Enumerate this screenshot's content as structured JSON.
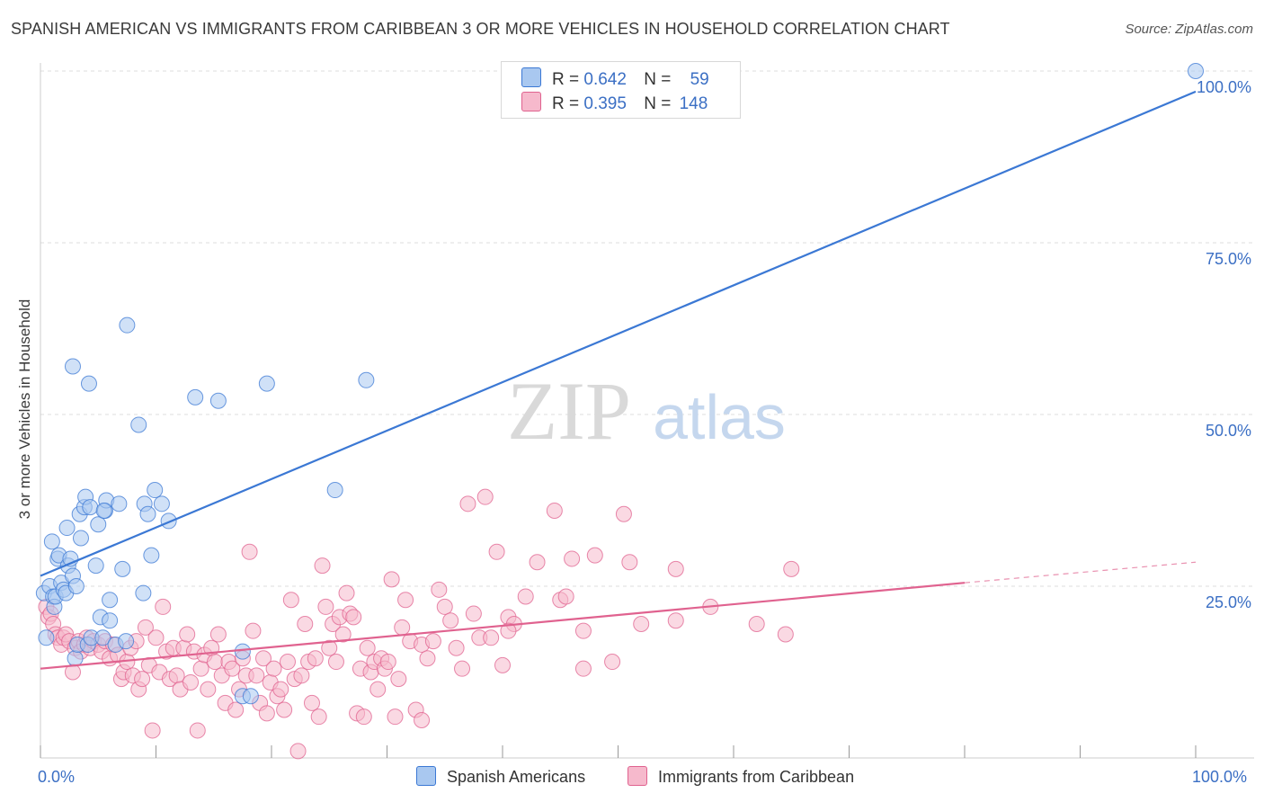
{
  "title": "SPANISH AMERICAN VS IMMIGRANTS FROM CARIBBEAN 3 OR MORE VEHICLES IN HOUSEHOLD CORRELATION CHART",
  "source": "Source: ZipAtlas.com",
  "watermark": {
    "zip": "ZIP",
    "atlas": "atlas"
  },
  "colors": {
    "blue": "#3b78d4",
    "blue_fill": "#a9c8f0",
    "pink": "#e0628f",
    "pink_fill": "#f6b9cc",
    "tick_text": "#3b6fc4",
    "grid": "#dddddd"
  },
  "legend": {
    "rows": [
      {
        "r_label": "R =",
        "r_value": "0.642",
        "n_label": "N =",
        "n_value": "59",
        "color": "#a9c8f0"
      },
      {
        "r_label": "R =",
        "r_value": "0.395",
        "n_label": "N =",
        "n_value": "148",
        "color": "#f6b9cc"
      }
    ]
  },
  "bottom_legend": [
    {
      "label": "Spanish Americans",
      "color": "#a9c8f0"
    },
    {
      "label": "Immigrants from Caribbean",
      "color": "#f6b9cc"
    }
  ],
  "chart_data": {
    "type": "scatter",
    "title": "SPANISH AMERICAN VS IMMIGRANTS FROM CARIBBEAN 3 OR MORE VEHICLES IN HOUSEHOLD CORRELATION CHART",
    "xlabel": "",
    "ylabel": "3 or more Vehicles in Household",
    "xlim": [
      0,
      100
    ],
    "ylim": [
      0,
      100
    ],
    "x_tick_labels": [
      "0.0%",
      "100.0%"
    ],
    "y_tick_labels": [
      "100.0%",
      "75.0%",
      "50.0%",
      "25.0%"
    ],
    "y_tick_values": [
      100,
      75,
      50,
      25
    ],
    "grid": true,
    "series": [
      {
        "name": "Spanish Americans",
        "color": "#3b78d4",
        "fill": "#a9c8f0",
        "trend": {
          "x0": 0,
          "y0": 26.5,
          "x1": 100,
          "y1": 97
        },
        "points": [
          [
            0.3,
            24
          ],
          [
            0.5,
            17.5
          ],
          [
            0.8,
            25
          ],
          [
            1,
            31.5
          ],
          [
            1.1,
            23.5
          ],
          [
            1.2,
            22
          ],
          [
            1.3,
            23.5
          ],
          [
            1.5,
            29
          ],
          [
            1.6,
            29.5
          ],
          [
            1.8,
            25.5
          ],
          [
            2,
            24.5
          ],
          [
            2.2,
            24
          ],
          [
            2.3,
            33.5
          ],
          [
            2.4,
            28
          ],
          [
            2.6,
            29
          ],
          [
            2.8,
            26.5
          ],
          [
            3,
            14.5
          ],
          [
            3.1,
            25
          ],
          [
            3.2,
            16.5
          ],
          [
            3.4,
            35.5
          ],
          [
            3.5,
            32
          ],
          [
            3.8,
            36.5
          ],
          [
            3.9,
            38
          ],
          [
            4.1,
            16.5
          ],
          [
            4.3,
            36.5
          ],
          [
            4.2,
            54.5
          ],
          [
            2.8,
            57
          ],
          [
            4.4,
            17.5
          ],
          [
            4.8,
            28
          ],
          [
            5,
            34
          ],
          [
            5.2,
            20.5
          ],
          [
            5.4,
            17.5
          ],
          [
            5.6,
            36
          ],
          [
            5.7,
            37.5
          ],
          [
            6,
            20
          ],
          [
            6,
            23
          ],
          [
            6.5,
            16.5
          ],
          [
            6.8,
            37
          ],
          [
            7.1,
            27.5
          ],
          [
            7.4,
            17
          ],
          [
            7.5,
            63
          ],
          [
            8.5,
            48.5
          ],
          [
            8.9,
            24
          ],
          [
            9,
            37
          ],
          [
            9.3,
            35.5
          ],
          [
            9.6,
            29.5
          ],
          [
            9.9,
            39
          ],
          [
            10.5,
            37
          ],
          [
            11.1,
            34.5
          ],
          [
            13.4,
            52.5
          ],
          [
            15.4,
            52
          ],
          [
            17.5,
            9
          ],
          [
            17.5,
            15.5
          ],
          [
            18.2,
            9
          ],
          [
            19.6,
            54.5
          ],
          [
            25.5,
            39
          ],
          [
            28.2,
            55
          ],
          [
            100,
            100
          ],
          [
            5.5,
            36
          ]
        ]
      },
      {
        "name": "Immigrants from Caribbean",
        "color": "#e0628f",
        "fill": "#f6b9cc",
        "trend": {
          "x0": 0,
          "y0": 13,
          "x1": 80,
          "y1": 25.5
        },
        "trend_dashed": {
          "x0": 80,
          "y0": 25.5,
          "x1": 100,
          "y1": 28.5
        },
        "points": [
          [
            0.5,
            22
          ],
          [
            0.7,
            20.5
          ],
          [
            0.9,
            21
          ],
          [
            1.1,
            19.5
          ],
          [
            1.3,
            18
          ],
          [
            1.5,
            17.5
          ],
          [
            1.8,
            16.5
          ],
          [
            2,
            17.5
          ],
          [
            2.2,
            18
          ],
          [
            2.5,
            17
          ],
          [
            2.8,
            12.5
          ],
          [
            3,
            16
          ],
          [
            3.3,
            17
          ],
          [
            3.5,
            15.5
          ],
          [
            3.8,
            16.5
          ],
          [
            4,
            17.5
          ],
          [
            4.3,
            16
          ],
          [
            4.6,
            17
          ],
          [
            5,
            16.5
          ],
          [
            5.3,
            15.5
          ],
          [
            5.6,
            17
          ],
          [
            6,
            14.5
          ],
          [
            6.3,
            16.5
          ],
          [
            6.7,
            15
          ],
          [
            7,
            11.5
          ],
          [
            7.2,
            12.5
          ],
          [
            7.5,
            14
          ],
          [
            7.8,
            16
          ],
          [
            8,
            12
          ],
          [
            8.3,
            17
          ],
          [
            8.5,
            10
          ],
          [
            8.8,
            11.5
          ],
          [
            9.1,
            19
          ],
          [
            9.4,
            13.5
          ],
          [
            9.7,
            4
          ],
          [
            10,
            17.5
          ],
          [
            10.3,
            12.5
          ],
          [
            10.6,
            22
          ],
          [
            10.9,
            15.5
          ],
          [
            11.2,
            11.5
          ],
          [
            11.5,
            16
          ],
          [
            11.8,
            12
          ],
          [
            12.1,
            10
          ],
          [
            12.4,
            16
          ],
          [
            12.7,
            18
          ],
          [
            13,
            11
          ],
          [
            13.3,
            15.5
          ],
          [
            13.6,
            4
          ],
          [
            13.9,
            13
          ],
          [
            14.2,
            15
          ],
          [
            14.5,
            10
          ],
          [
            14.8,
            16
          ],
          [
            15.1,
            14
          ],
          [
            15.4,
            18
          ],
          [
            15.7,
            12
          ],
          [
            16,
            8
          ],
          [
            16.3,
            14
          ],
          [
            16.6,
            13
          ],
          [
            16.9,
            7
          ],
          [
            17.2,
            10
          ],
          [
            17.5,
            14.5
          ],
          [
            17.8,
            12
          ],
          [
            18.1,
            30
          ],
          [
            18.4,
            18.5
          ],
          [
            18.7,
            12
          ],
          [
            19,
            8
          ],
          [
            19.3,
            14.5
          ],
          [
            19.6,
            6.5
          ],
          [
            19.9,
            11
          ],
          [
            20.2,
            13
          ],
          [
            20.5,
            9
          ],
          [
            20.8,
            10
          ],
          [
            21.1,
            7
          ],
          [
            21.4,
            14
          ],
          [
            21.7,
            23
          ],
          [
            22,
            11.5
          ],
          [
            22.3,
            1
          ],
          [
            22.6,
            12
          ],
          [
            22.9,
            19.5
          ],
          [
            23.2,
            14
          ],
          [
            23.5,
            8
          ],
          [
            23.8,
            14.5
          ],
          [
            24.1,
            6
          ],
          [
            24.4,
            28
          ],
          [
            24.7,
            22
          ],
          [
            25,
            16
          ],
          [
            25.3,
            19.5
          ],
          [
            25.6,
            14
          ],
          [
            25.9,
            20.5
          ],
          [
            26.2,
            18
          ],
          [
            26.5,
            24
          ],
          [
            26.8,
            21
          ],
          [
            27.1,
            20.5
          ],
          [
            27.4,
            6.5
          ],
          [
            27.7,
            13
          ],
          [
            28,
            6
          ],
          [
            28.3,
            16
          ],
          [
            28.6,
            12.5
          ],
          [
            28.9,
            14
          ],
          [
            29.2,
            10
          ],
          [
            29.5,
            14.5
          ],
          [
            29.8,
            13
          ],
          [
            30.1,
            14
          ],
          [
            30.4,
            26
          ],
          [
            30.7,
            6
          ],
          [
            31,
            11.5
          ],
          [
            31.3,
            19
          ],
          [
            31.6,
            23
          ],
          [
            32,
            17
          ],
          [
            32.5,
            7
          ],
          [
            33,
            16.5
          ],
          [
            33.5,
            14.5
          ],
          [
            34,
            17
          ],
          [
            34.5,
            24.5
          ],
          [
            35,
            22
          ],
          [
            35.5,
            20
          ],
          [
            36,
            16
          ],
          [
            36.5,
            13
          ],
          [
            37,
            37
          ],
          [
            37.5,
            21
          ],
          [
            38,
            17.5
          ],
          [
            38.5,
            38
          ],
          [
            39,
            17.5
          ],
          [
            39.5,
            30
          ],
          [
            40,
            13.5
          ],
          [
            40.5,
            20.5
          ],
          [
            41,
            19.5
          ],
          [
            42,
            23.5
          ],
          [
            43,
            28.5
          ],
          [
            44.5,
            36
          ],
          [
            45,
            23
          ],
          [
            46,
            29
          ],
          [
            47,
            18.5
          ],
          [
            48,
            29.5
          ],
          [
            49.5,
            14
          ],
          [
            50.5,
            35.5
          ],
          [
            51,
            28.5
          ],
          [
            52,
            19.5
          ],
          [
            55,
            27.5
          ],
          [
            58,
            22
          ],
          [
            62,
            19.5
          ],
          [
            65,
            27.5
          ],
          [
            33,
            5.5
          ],
          [
            45.5,
            23.5
          ],
          [
            55,
            20
          ],
          [
            47,
            13
          ],
          [
            40.5,
            18.5
          ],
          [
            64.5,
            18
          ]
        ]
      }
    ]
  }
}
